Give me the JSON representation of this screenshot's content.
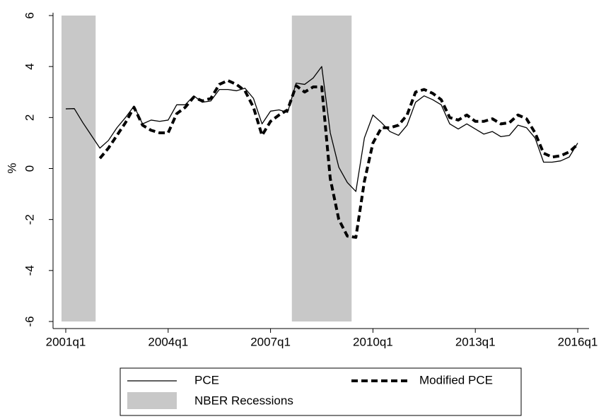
{
  "chart_data": {
    "type": "line",
    "ylabel": "%",
    "categories": [
      "2001q1",
      null,
      null,
      null,
      null,
      null,
      null,
      null,
      null,
      null,
      null,
      null,
      "2004q1",
      null,
      null,
      null,
      null,
      null,
      null,
      null,
      null,
      null,
      null,
      null,
      "2007q1",
      null,
      null,
      null,
      null,
      null,
      null,
      null,
      null,
      null,
      null,
      null,
      "2010q1",
      null,
      null,
      null,
      null,
      null,
      null,
      null,
      null,
      null,
      null,
      null,
      "2013q1",
      null,
      null,
      null,
      null,
      null,
      null,
      null,
      null,
      null,
      null,
      null,
      "2016q1"
    ],
    "series": [
      {
        "name": "PCE",
        "color": "#000000",
        "dash": false,
        "values": [
          2.34,
          2.35,
          1.8,
          1.3,
          0.8,
          1.1,
          1.6,
          2.0,
          2.45,
          1.75,
          1.9,
          1.85,
          1.9,
          2.5,
          2.5,
          2.85,
          2.6,
          2.65,
          3.1,
          3.1,
          3.05,
          3.15,
          2.75,
          1.75,
          2.25,
          2.3,
          2.2,
          3.35,
          3.3,
          3.55,
          4.0,
          1.4,
          0.05,
          -0.55,
          -0.9,
          1.2,
          2.1,
          1.8,
          1.45,
          1.3,
          1.7,
          2.6,
          2.85,
          2.7,
          2.5,
          1.75,
          1.55,
          1.75,
          1.55,
          1.35,
          1.45,
          1.25,
          1.3,
          1.7,
          1.6,
          1.2,
          0.25,
          0.25,
          0.3,
          0.45,
          1.0
        ]
      },
      {
        "name": "Modified PCE",
        "color": "#000000",
        "dash": true,
        "values": [
          null,
          null,
          null,
          null,
          0.4,
          0.8,
          1.3,
          1.8,
          2.4,
          1.7,
          1.5,
          1.4,
          1.4,
          2.15,
          2.4,
          2.8,
          2.65,
          2.75,
          3.3,
          3.45,
          3.3,
          3.05,
          2.4,
          1.3,
          1.85,
          2.1,
          2.3,
          3.25,
          3.0,
          3.2,
          3.2,
          -0.4,
          -2.0,
          -2.65,
          -2.7,
          -0.5,
          1.0,
          1.6,
          1.6,
          1.7,
          2.1,
          3.0,
          3.1,
          2.95,
          2.7,
          2.0,
          1.9,
          2.1,
          1.85,
          1.85,
          1.95,
          1.75,
          1.8,
          2.1,
          1.95,
          1.4,
          0.6,
          0.45,
          0.5,
          0.65,
          0.95
        ]
      }
    ],
    "recessions": {
      "name": "NBER Recessions",
      "color": "#c8c8c8",
      "ranges": [
        [
          0,
          3
        ],
        [
          27,
          33
        ]
      ]
    },
    "ylim": [
      -6,
      6
    ],
    "yticks": [
      -6,
      -4,
      -2,
      0,
      2,
      4,
      6
    ],
    "grid": false
  }
}
